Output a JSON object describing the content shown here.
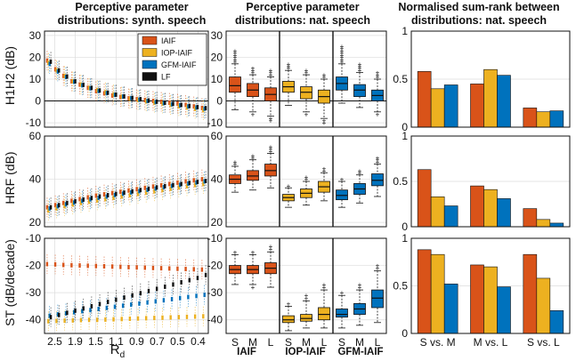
{
  "colors": {
    "IAIF": "#d95319",
    "IOP-IAIF": "#edb120",
    "GFM-IAIF": "#0072bd",
    "LF": "#111111"
  },
  "titles": {
    "col1": [
      "Perceptive parameter",
      "distributions: synth. speech"
    ],
    "col2": [
      "Perceptive parameter",
      "distributions: nat. speech"
    ],
    "col3": [
      "Normalised sum-rank between",
      "distributions: nat. speech"
    ]
  },
  "row_labels": [
    "H1H2 (dB)",
    "HRF (dB)",
    "ST (dB/decade)"
  ],
  "rd_axis": {
    "label": "R",
    "label_sub": "d",
    "ticks": [
      "2.5",
      "1.9",
      "1.5",
      "1.1",
      "0.9",
      "0.7",
      "0.5",
      "0.4"
    ]
  },
  "box_categories": [
    "S",
    "M",
    "L"
  ],
  "box_groups": [
    "IAIF",
    "IOP-IAIF",
    "GFM-IAIF"
  ],
  "rank_categories": [
    "S vs. M",
    "M vs. L",
    "S vs. L"
  ],
  "chart_data": [
    {
      "type": "scatter",
      "panel": "synth-H1H2",
      "ylim": [
        -12,
        32
      ],
      "yticks": [
        -10,
        0,
        10,
        20,
        30
      ],
      "series": [
        {
          "name": "IAIF",
          "values": [
            18.5,
            14.5,
            11.5,
            9,
            7.5,
            6,
            4.5,
            3.5,
            2.5,
            1.8,
            1.2,
            0.8,
            0.4,
            0,
            -0.4,
            -0.8,
            -1.2,
            -1.8,
            -2.5,
            -3.2
          ]
        },
        {
          "name": "IOP-IAIF",
          "values": [
            17.5,
            14,
            11.5,
            9,
            7.5,
            6,
            5,
            4,
            3,
            2,
            1,
            0.4,
            -0.2,
            -0.8,
            -1.2,
            -1.8,
            -2.4,
            -3,
            -3.6,
            -4.2
          ]
        },
        {
          "name": "GFM-IAIF",
          "values": [
            17,
            13.5,
            11,
            8.8,
            7.2,
            5.8,
            4.6,
            3.6,
            2.8,
            2,
            1.3,
            0.6,
            0,
            -0.5,
            -1,
            -1.5,
            -2,
            -2.5,
            -3,
            -3.5
          ]
        },
        {
          "name": "LF",
          "values": [
            18,
            14,
            11.2,
            9,
            7.4,
            6,
            4.8,
            3.8,
            2.9,
            2.1,
            1.4,
            0.8,
            0.2,
            -0.3,
            -0.8,
            -1.3,
            -1.8,
            -2.3,
            -2.8,
            -3.3
          ]
        }
      ]
    },
    {
      "type": "scatter",
      "panel": "synth-HRF",
      "ylim": [
        18,
        60
      ],
      "yticks": [
        20,
        40,
        60
      ],
      "series": [
        {
          "name": "IAIF",
          "values": [
            27,
            28,
            29,
            30,
            30.8,
            31.6,
            32.4,
            33,
            33.6,
            34.2,
            34.8,
            35.4,
            36,
            36.6,
            37.2,
            37.8,
            38.4,
            39,
            39.5,
            40
          ]
        },
        {
          "name": "IOP-IAIF",
          "values": [
            25.5,
            26.5,
            27.5,
            28.3,
            29,
            29.6,
            30.2,
            30.8,
            31.4,
            32,
            32.6,
            33.2,
            33.8,
            34.4,
            35,
            35.6,
            36.2,
            36.8,
            37.3,
            37.8
          ]
        },
        {
          "name": "GFM-IAIF",
          "values": [
            26.5,
            27.5,
            28.4,
            29.2,
            30,
            30.7,
            31.4,
            32,
            32.7,
            33.3,
            33.9,
            34.5,
            35.1,
            35.7,
            36.3,
            36.9,
            37.4,
            38,
            38.5,
            39
          ]
        },
        {
          "name": "LF",
          "values": [
            27,
            28,
            29,
            29.8,
            30.6,
            31.3,
            32,
            32.6,
            33.2,
            33.8,
            34.4,
            35,
            35.6,
            36.2,
            36.8,
            37.3,
            37.8,
            38.3,
            38.8,
            39.2
          ]
        }
      ]
    },
    {
      "type": "scatter",
      "panel": "synth-ST",
      "ylim": [
        -45,
        -10
      ],
      "yticks": [
        -40,
        -30,
        -20,
        -10
      ],
      "series": [
        {
          "name": "IAIF",
          "values": [
            -19.5,
            -19.6,
            -19.8,
            -19.9,
            -20,
            -20.1,
            -20.2,
            -20.3,
            -20.4,
            -20.5,
            -20.6,
            -20.7,
            -20.8,
            -20.9,
            -21,
            -21.1,
            -21.2,
            -21.3,
            -21.4,
            -21.5
          ]
        },
        {
          "name": "IOP-IAIF",
          "values": [
            -40.5,
            -40.4,
            -40.3,
            -40.2,
            -40.1,
            -40,
            -40,
            -39.9,
            -39.8,
            -39.7,
            -39.6,
            -39.5,
            -39.4,
            -39.3,
            -39.2,
            -39.1,
            -39,
            -38.9,
            -38.8,
            -38.7
          ]
        },
        {
          "name": "GFM-IAIF",
          "values": [
            -38.5,
            -38,
            -37.6,
            -37.2,
            -36.8,
            -36.4,
            -36,
            -35.6,
            -35.2,
            -34.8,
            -34.4,
            -34,
            -33.6,
            -33.2,
            -32.8,
            -32.4,
            -32,
            -31.6,
            -31.2,
            -30.8
          ]
        },
        {
          "name": "LF",
          "values": [
            -39,
            -38.2,
            -37.4,
            -36.6,
            -35.8,
            -35,
            -34.2,
            -33.4,
            -32.6,
            -31.8,
            -31,
            -30.2,
            -29.4,
            -28.6,
            -27.8,
            -27,
            -26.2,
            -25.4,
            -24.6,
            -23.5
          ]
        }
      ]
    },
    {
      "type": "box",
      "panel": "nat-H1H2",
      "ylim": [
        -12,
        32
      ],
      "yticks": [
        -10,
        0,
        10,
        20,
        30
      ],
      "groups": [
        {
          "name": "IAIF",
          "boxes": [
            {
              "cat": "S",
              "min": -4,
              "q1": 4,
              "median": 7,
              "q3": 11,
              "max": 17,
              "outliers": [
                18,
                19,
                20,
                21,
                22,
                23
              ]
            },
            {
              "cat": "M",
              "min": -5,
              "q1": 2,
              "median": 5,
              "q3": 8,
              "max": 12,
              "outliers": [
                13,
                14,
                15,
                -6
              ]
            },
            {
              "cat": "L",
              "min": -7,
              "q1": 0,
              "median": 3,
              "q3": 6,
              "max": 11,
              "outliers": [
                12,
                13,
                14,
                -8,
                -9
              ]
            }
          ]
        },
        {
          "name": "IOP-IAIF",
          "boxes": [
            {
              "cat": "S",
              "min": -2,
              "q1": 4,
              "median": 6.5,
              "q3": 9,
              "max": 14,
              "outliers": [
                15,
                16,
                17
              ]
            },
            {
              "cat": "M",
              "min": -5,
              "q1": 1,
              "median": 4,
              "q3": 6.5,
              "max": 12,
              "outliers": [
                13,
                14,
                -6
              ]
            },
            {
              "cat": "L",
              "min": -8,
              "q1": -1,
              "median": 2,
              "q3": 5,
              "max": 10,
              "outliers": [
                11,
                12,
                -9,
                -10
              ]
            }
          ]
        },
        {
          "name": "GFM-IAIF",
          "boxes": [
            {
              "cat": "S",
              "min": -1,
              "q1": 5,
              "median": 8,
              "q3": 11,
              "max": 17,
              "outliers": [
                18,
                19,
                20,
                21,
                22,
                23,
                24,
                25
              ]
            },
            {
              "cat": "M",
              "min": -3,
              "q1": 2,
              "median": 5,
              "q3": 7.5,
              "max": 13,
              "outliers": [
                14,
                15,
                16,
                17
              ]
            },
            {
              "cat": "L",
              "min": -5,
              "q1": 0,
              "median": 2.5,
              "q3": 5,
              "max": 10,
              "outliers": [
                11,
                12,
                13,
                -6
              ]
            }
          ]
        }
      ]
    },
    {
      "type": "box",
      "panel": "nat-HRF",
      "ylim": [
        18,
        60
      ],
      "yticks": [
        20,
        40,
        60
      ],
      "groups": [
        {
          "name": "IAIF",
          "boxes": [
            {
              "cat": "S",
              "min": 34,
              "q1": 38,
              "median": 40,
              "q3": 42,
              "max": 46,
              "outliers": [
                47,
                48
              ]
            },
            {
              "cat": "M",
              "min": 35,
              "q1": 39.5,
              "median": 41.5,
              "q3": 44,
              "max": 49,
              "outliers": [
                50,
                51
              ]
            },
            {
              "cat": "L",
              "min": 36,
              "q1": 41.5,
              "median": 44,
              "q3": 47,
              "max": 52,
              "outliers": [
                53,
                54,
                55
              ]
            }
          ]
        },
        {
          "name": "IOP-IAIF",
          "boxes": [
            {
              "cat": "S",
              "min": 27,
              "q1": 30,
              "median": 31.5,
              "q3": 33,
              "max": 36,
              "outliers": [
                37
              ]
            },
            {
              "cat": "M",
              "min": 28,
              "q1": 31.5,
              "median": 33.5,
              "q3": 35.5,
              "max": 39,
              "outliers": [
                40,
                41
              ]
            },
            {
              "cat": "L",
              "min": 30,
              "q1": 34,
              "median": 36.5,
              "q3": 39,
              "max": 43,
              "outliers": [
                44,
                45
              ]
            }
          ]
        },
        {
          "name": "GFM-IAIF",
          "boxes": [
            {
              "cat": "S",
              "min": 27,
              "q1": 30.5,
              "median": 32.5,
              "q3": 35,
              "max": 39,
              "outliers": [
                40
              ]
            },
            {
              "cat": "M",
              "min": 29,
              "q1": 33,
              "median": 35.5,
              "q3": 38,
              "max": 42,
              "outliers": [
                43,
                44
              ]
            },
            {
              "cat": "L",
              "min": 32,
              "q1": 37,
              "median": 39.5,
              "q3": 42.5,
              "max": 47,
              "outliers": [
                48,
                49,
                50
              ]
            }
          ]
        }
      ]
    },
    {
      "type": "box",
      "panel": "nat-ST",
      "ylim": [
        -45,
        -10
      ],
      "yticks": [
        -40,
        -30,
        -20,
        -10
      ],
      "groups": [
        {
          "name": "IAIF",
          "boxes": [
            {
              "cat": "S",
              "min": -27,
              "q1": -23,
              "median": -21.5,
              "q3": -20,
              "max": -16,
              "outliers": [
                -15
              ]
            },
            {
              "cat": "M",
              "min": -27,
              "q1": -23,
              "median": -21.5,
              "q3": -20,
              "max": -16,
              "outliers": [
                -15,
                -28
              ]
            },
            {
              "cat": "L",
              "min": -28,
              "q1": -23,
              "median": -21,
              "q3": -19,
              "max": -15,
              "outliers": [
                -14,
                -13
              ]
            }
          ]
        },
        {
          "name": "IOP-IAIF",
          "boxes": [
            {
              "cat": "S",
              "min": -44,
              "q1": -41,
              "median": -40,
              "q3": -38.5,
              "max": -35,
              "outliers": [
                -34
              ]
            },
            {
              "cat": "M",
              "min": -43,
              "q1": -40.5,
              "median": -39.5,
              "q3": -38,
              "max": -33,
              "outliers": [
                -32,
                -31
              ]
            },
            {
              "cat": "L",
              "min": -43,
              "q1": -40,
              "median": -38,
              "q3": -35.5,
              "max": -29,
              "outliers": [
                -28,
                -27
              ]
            }
          ]
        },
        {
          "name": "GFM-IAIF",
          "boxes": [
            {
              "cat": "S",
              "min": -43,
              "q1": -39,
              "median": -38,
              "q3": -36,
              "max": -31,
              "outliers": [
                -30
              ]
            },
            {
              "cat": "M",
              "min": -42,
              "q1": -38,
              "median": -36,
              "q3": -34,
              "max": -29,
              "outliers": [
                -28,
                -27
              ]
            },
            {
              "cat": "L",
              "min": -41,
              "q1": -35.5,
              "median": -32,
              "q3": -29,
              "max": -22,
              "outliers": [
                -21,
                -20
              ]
            }
          ]
        }
      ]
    },
    {
      "type": "bar",
      "panel": "rank-H1H2",
      "ylim": [
        0,
        1
      ],
      "yticks": [
        0,
        0.5,
        1
      ],
      "categories": [
        "S vs. M",
        "M vs. L",
        "S vs. L"
      ],
      "series": [
        {
          "name": "IAIF",
          "values": [
            0.58,
            0.45,
            0.2
          ]
        },
        {
          "name": "IOP-IAIF",
          "values": [
            0.4,
            0.6,
            0.16
          ]
        },
        {
          "name": "GFM-IAIF",
          "values": [
            0.44,
            0.54,
            0.17
          ]
        }
      ]
    },
    {
      "type": "bar",
      "panel": "rank-HRF",
      "ylim": [
        0,
        1
      ],
      "yticks": [
        0,
        0.5,
        1
      ],
      "categories": [
        "S vs. M",
        "M vs. L",
        "S vs. L"
      ],
      "series": [
        {
          "name": "IAIF",
          "values": [
            0.63,
            0.45,
            0.2
          ]
        },
        {
          "name": "IOP-IAIF",
          "values": [
            0.33,
            0.41,
            0.08
          ]
        },
        {
          "name": "GFM-IAIF",
          "values": [
            0.23,
            0.31,
            0.04
          ]
        }
      ]
    },
    {
      "type": "bar",
      "panel": "rank-ST",
      "ylim": [
        0,
        1
      ],
      "yticks": [
        0,
        0.5,
        1
      ],
      "categories": [
        "S vs. M",
        "M vs. L",
        "S vs. L"
      ],
      "series": [
        {
          "name": "IAIF",
          "values": [
            0.88,
            0.72,
            0.83
          ]
        },
        {
          "name": "IOP-IAIF",
          "values": [
            0.83,
            0.7,
            0.58
          ]
        },
        {
          "name": "GFM-IAIF",
          "values": [
            0.52,
            0.49,
            0.24
          ]
        }
      ]
    }
  ]
}
